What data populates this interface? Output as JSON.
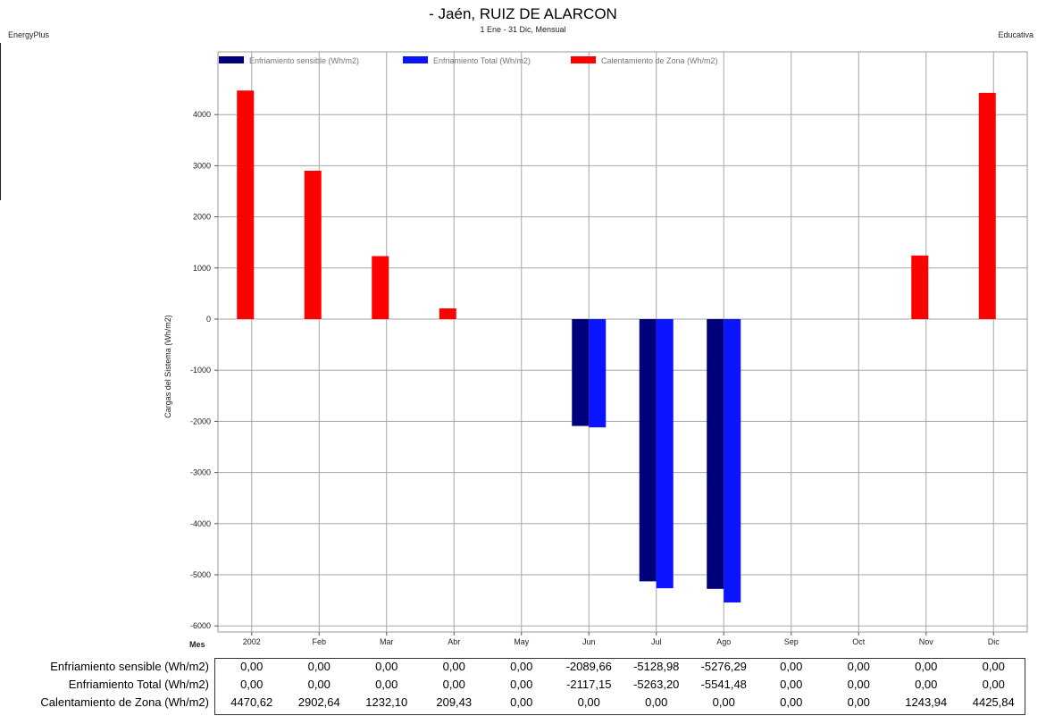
{
  "header": {
    "title": "- Jaén, RUIZ DE ALARCON",
    "subtitle": "1 Ene - 31 Dic, Mensual",
    "left_label": "EnergyPlus",
    "right_label": "Educativa"
  },
  "chart_data": {
    "type": "bar",
    "categories": [
      "2002",
      "Feb",
      "Mar",
      "Abr",
      "May",
      "Jun",
      "Jul",
      "Ago",
      "Sep",
      "Oct",
      "Nov",
      "Dic"
    ],
    "series": [
      {
        "name": "Enfriamiento sensible (Wh/m2)",
        "color": "#00007a",
        "values": [
          0,
          0,
          0,
          0,
          0,
          -2089.66,
          -5128.98,
          -5276.29,
          0,
          0,
          0,
          0
        ]
      },
      {
        "name": "Enfriamiento Total (Wh/m2)",
        "color": "#0a14ff",
        "values": [
          0,
          0,
          0,
          0,
          0,
          -2117.15,
          -5263.2,
          -5541.48,
          0,
          0,
          0,
          0
        ]
      },
      {
        "name": "Calentamiento de Zona (Wh/m2)",
        "color": "#ff0000",
        "values": [
          4470.62,
          2902.64,
          1232.1,
          209.43,
          0,
          0,
          0,
          0,
          0,
          0,
          1243.94,
          4425.84
        ]
      }
    ],
    "ylim": [
      -6000,
      5000
    ],
    "yticks": [
      "4000",
      "3000",
      "2000",
      "1000",
      "0",
      "-1000",
      "-2000",
      "-3000",
      "-4000",
      "-5000",
      "-6000"
    ],
    "ylabel": "Cargas del Sistema (Wh/m2)",
    "xlabel": "Mes",
    "grid": true,
    "legend_position": "top",
    "table": {
      "rows": [
        {
          "label": "Enfriamiento sensible (Wh/m2)",
          "cells": [
            "0,00",
            "0,00",
            "0,00",
            "0,00",
            "0,00",
            "-2089,66",
            "-5128,98",
            "-5276,29",
            "0,00",
            "0,00",
            "0,00",
            "0,00"
          ]
        },
        {
          "label": "Enfriamiento Total (Wh/m2)",
          "cells": [
            "0,00",
            "0,00",
            "0,00",
            "0,00",
            "0,00",
            "-2117,15",
            "-5263,20",
            "-5541,48",
            "0,00",
            "0,00",
            "0,00",
            "0,00"
          ]
        },
        {
          "label": "Calentamiento de Zona (Wh/m2)",
          "cells": [
            "4470,62",
            "2902,64",
            "1232,10",
            "209,43",
            "0,00",
            "0,00",
            "0,00",
            "0,00",
            "0,00",
            "0,00",
            "1243,94",
            "4425,84"
          ]
        }
      ]
    }
  }
}
